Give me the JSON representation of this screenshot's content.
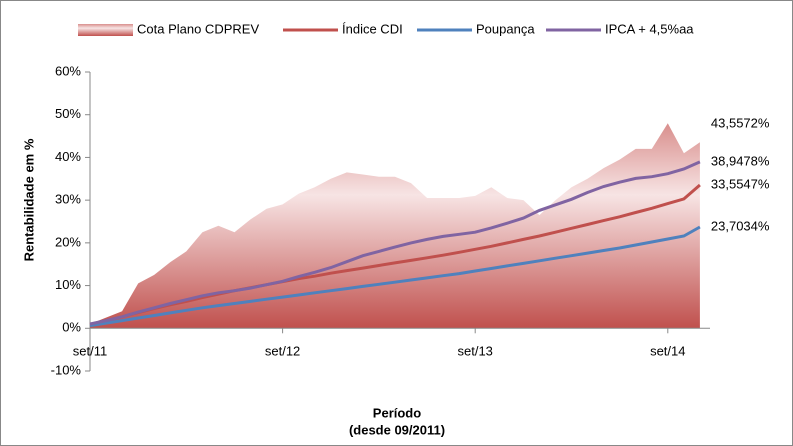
{
  "chart_data": {
    "type": "line",
    "ylabel": "Rentabilidade em %",
    "xlabel": "Período",
    "xlabel_note": "(desde 09/2011)",
    "categories": [
      "set/11",
      null,
      null,
      null,
      null,
      null,
      null,
      null,
      null,
      null,
      null,
      null,
      "set/12",
      null,
      null,
      null,
      null,
      null,
      null,
      null,
      null,
      null,
      null,
      null,
      "set/13",
      null,
      null,
      null,
      null,
      null,
      null,
      null,
      null,
      null,
      null,
      null,
      "set/14",
      null,
      null
    ],
    "ylim": [
      -10,
      60
    ],
    "yticks": [
      {
        "value": -10,
        "label": "-10%"
      },
      {
        "value": 0,
        "label": "0%"
      },
      {
        "value": 10,
        "label": "10%"
      },
      {
        "value": 20,
        "label": "20%"
      },
      {
        "value": 30,
        "label": "30%"
      },
      {
        "value": 40,
        "label": "40%"
      },
      {
        "value": 50,
        "label": "50%"
      },
      {
        "value": 60,
        "label": "60%"
      }
    ],
    "grid": false,
    "series": [
      {
        "name": "Cota Plano CDPREV",
        "kind": "area",
        "color": "#c0504d",
        "values": [
          1,
          2.5,
          4,
          10.5,
          12.5,
          15.5,
          18,
          22.5,
          24,
          22.5,
          25.5,
          28,
          29,
          31.5,
          33,
          35,
          36.5,
          36,
          35.5,
          35.5,
          34,
          30.5,
          30.5,
          30.5,
          31,
          33,
          30.5,
          30,
          26.5,
          30,
          33,
          35,
          37.5,
          39.5,
          42,
          42,
          48,
          41,
          43.5572
        ],
        "value_labels": [
          null,
          null,
          null,
          null,
          null,
          null,
          null,
          null,
          null,
          null,
          null,
          null,
          null,
          null,
          null,
          null,
          null,
          null,
          null,
          null,
          null,
          null,
          null,
          null,
          null,
          null,
          null,
          null,
          null,
          null,
          null,
          null,
          null,
          null,
          null,
          null,
          null,
          null,
          "43,5572%"
        ]
      },
      {
        "name": "Índice CDI",
        "kind": "line",
        "color": "#c0504d",
        "values": [
          0.9,
          1.8,
          2.7,
          3.7,
          4.6,
          5.5,
          6.3,
          7.2,
          8,
          8.8,
          9.5,
          10.2,
          10.9,
          11.6,
          12.2,
          12.9,
          13.5,
          14.1,
          14.7,
          15.3,
          15.9,
          16.5,
          17.1,
          17.8,
          18.5,
          19.2,
          20,
          20.8,
          21.6,
          22.5,
          23.4,
          24.3,
          25.2,
          26.1,
          27.1,
          28.1,
          29.2,
          30.3,
          33.5547
        ],
        "value_labels": [
          null,
          null,
          null,
          null,
          null,
          null,
          null,
          null,
          null,
          null,
          null,
          null,
          null,
          null,
          null,
          null,
          null,
          null,
          null,
          null,
          null,
          null,
          null,
          null,
          null,
          null,
          null,
          null,
          null,
          null,
          null,
          null,
          null,
          null,
          null,
          null,
          null,
          null,
          "33,5547%"
        ]
      },
      {
        "name": "Poupança",
        "kind": "line",
        "color": "#4f81bd",
        "values": [
          0.6,
          1.2,
          1.8,
          2.4,
          3,
          3.6,
          4.2,
          4.8,
          5.3,
          5.8,
          6.3,
          6.8,
          7.3,
          7.8,
          8.3,
          8.8,
          9.3,
          9.8,
          10.3,
          10.8,
          11.3,
          11.8,
          12.3,
          12.8,
          13.4,
          14,
          14.6,
          15.2,
          15.8,
          16.4,
          17,
          17.6,
          18.2,
          18.8,
          19.5,
          20.2,
          20.9,
          21.6,
          23.7034
        ],
        "value_labels": [
          null,
          null,
          null,
          null,
          null,
          null,
          null,
          null,
          null,
          null,
          null,
          null,
          null,
          null,
          null,
          null,
          null,
          null,
          null,
          null,
          null,
          null,
          null,
          null,
          null,
          null,
          null,
          null,
          null,
          null,
          null,
          null,
          null,
          null,
          null,
          null,
          null,
          null,
          "23,7034%"
        ]
      },
      {
        "name": "IPCA + 4,5%aa",
        "kind": "line",
        "color": "#8064a2",
        "values": [
          1,
          1.8,
          2.7,
          3.8,
          4.8,
          5.8,
          6.7,
          7.6,
          8.3,
          8.8,
          9.4,
          10.2,
          11,
          12.1,
          13.1,
          14.2,
          15.6,
          17,
          18,
          19,
          20,
          20.8,
          21.5,
          22,
          22.5,
          23.5,
          24.6,
          25.8,
          27.6,
          28.9,
          30.2,
          31.8,
          33.2,
          34.2,
          35.1,
          35.5,
          36.2,
          37.3,
          38.9478
        ],
        "value_labels": [
          null,
          null,
          null,
          null,
          null,
          null,
          null,
          null,
          null,
          null,
          null,
          null,
          null,
          null,
          null,
          null,
          null,
          null,
          null,
          null,
          null,
          null,
          null,
          null,
          null,
          null,
          null,
          null,
          null,
          null,
          null,
          null,
          null,
          null,
          null,
          null,
          null,
          null,
          "38,9478%"
        ]
      }
    ]
  }
}
